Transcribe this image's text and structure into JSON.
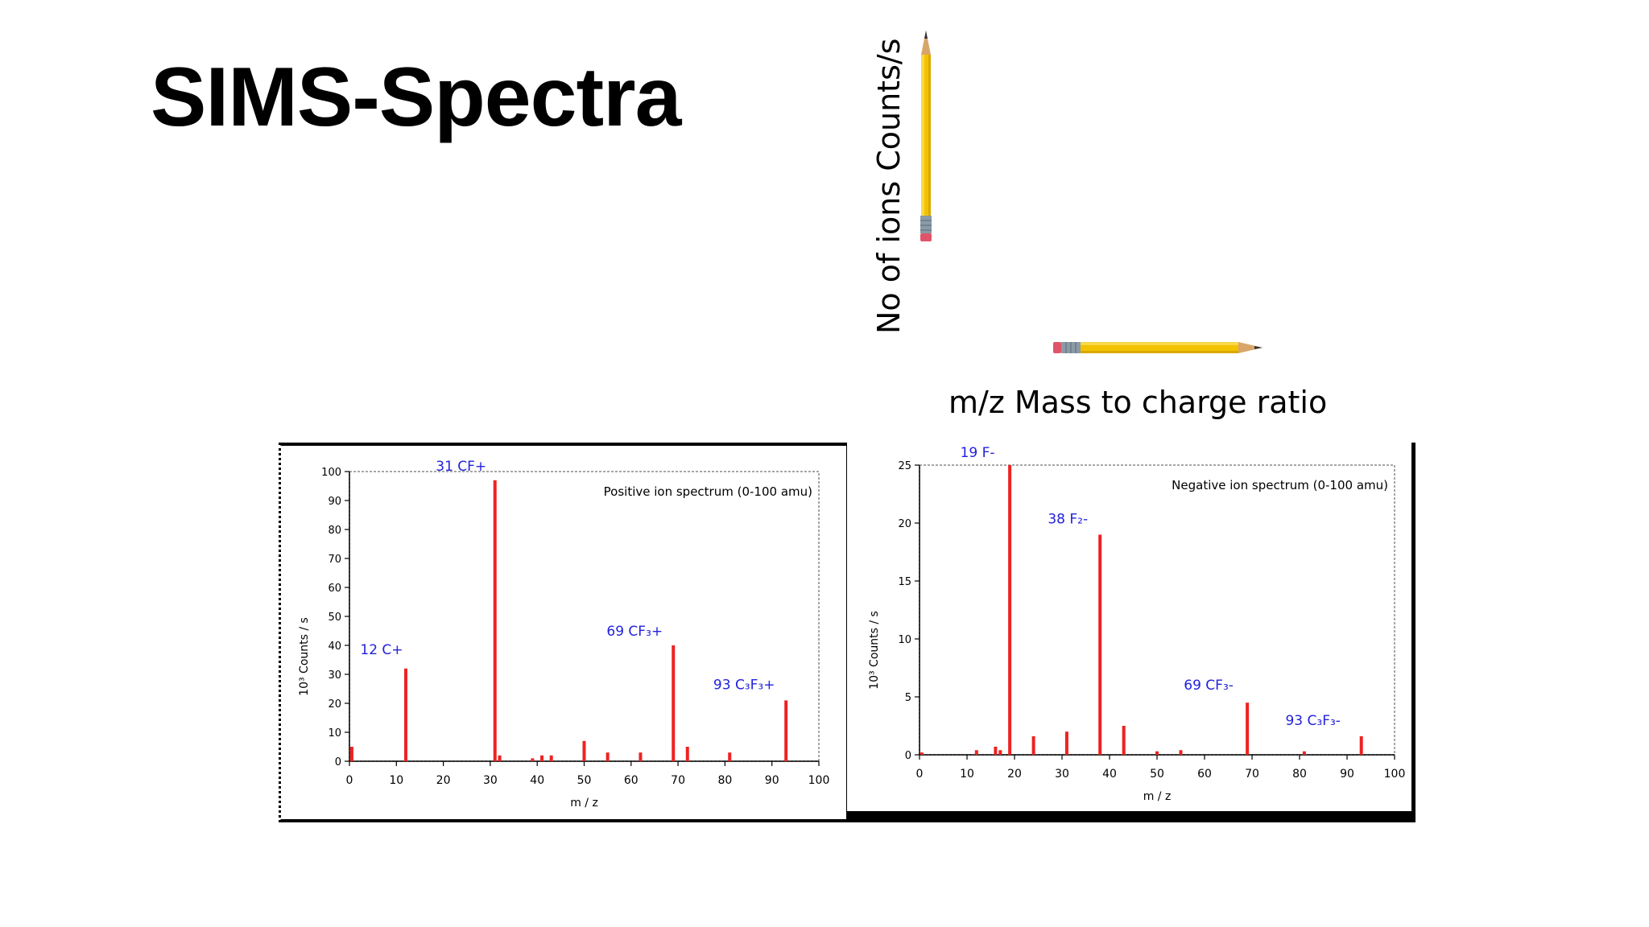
{
  "slide": {
    "title": "SIMS-Spectra",
    "y_axis_caption": "No of ions  Counts/s",
    "x_axis_caption": "m/z  Mass to charge ratio"
  },
  "colors": {
    "peak": "#ee2222",
    "label": "#2222dd",
    "axis": "#000000",
    "grid": "#888888"
  },
  "icons": [
    "pencil-vertical-icon",
    "pencil-horizontal-icon"
  ],
  "chart_data": [
    {
      "type": "bar",
      "title": "Positive ion spectrum (0-100 amu)",
      "xlabel": "m / z",
      "ylabel": "10³ Counts / s",
      "xlim": [
        0,
        100
      ],
      "ylim": [
        0,
        100
      ],
      "xticks": [
        0,
        10,
        20,
        30,
        40,
        50,
        60,
        70,
        80,
        90,
        100
      ],
      "yticks": [
        0,
        10,
        20,
        30,
        40,
        50,
        60,
        70,
        80,
        90,
        100
      ],
      "peaks": [
        {
          "x": 0.5,
          "y": 5
        },
        {
          "x": 12,
          "y": 32
        },
        {
          "x": 31,
          "y": 97
        },
        {
          "x": 32,
          "y": 2
        },
        {
          "x": 39,
          "y": 1
        },
        {
          "x": 41,
          "y": 2
        },
        {
          "x": 43,
          "y": 2
        },
        {
          "x": 50,
          "y": 7
        },
        {
          "x": 55,
          "y": 3
        },
        {
          "x": 62,
          "y": 3
        },
        {
          "x": 69,
          "y": 40
        },
        {
          "x": 72,
          "y": 5
        },
        {
          "x": 81,
          "y": 3
        },
        {
          "x": 93,
          "y": 21
        }
      ],
      "annotations": [
        {
          "text": "12 C+",
          "x": 12,
          "y": 32
        },
        {
          "text": "31 CF+",
          "x": 31,
          "y": 97
        },
        {
          "text": "69 CF₃+",
          "x": 69,
          "y": 40
        },
        {
          "text": "93 C₃F₃+",
          "x": 93,
          "y": 21
        }
      ]
    },
    {
      "type": "bar",
      "title": "Negative ion spectrum (0-100 amu)",
      "xlabel": "m / z",
      "ylabel": "10³ Counts / s",
      "xlim": [
        0,
        100
      ],
      "ylim": [
        0,
        25
      ],
      "xticks": [
        0,
        10,
        20,
        30,
        40,
        50,
        60,
        70,
        80,
        90,
        100
      ],
      "yticks": [
        0,
        5,
        10,
        15,
        20,
        25
      ],
      "peaks": [
        {
          "x": 0.5,
          "y": 0.2
        },
        {
          "x": 12,
          "y": 0.4
        },
        {
          "x": 16,
          "y": 0.7
        },
        {
          "x": 17,
          "y": 0.4
        },
        {
          "x": 19,
          "y": 25
        },
        {
          "x": 24,
          "y": 1.6
        },
        {
          "x": 31,
          "y": 2
        },
        {
          "x": 38,
          "y": 19
        },
        {
          "x": 43,
          "y": 2.5
        },
        {
          "x": 50,
          "y": 0.3
        },
        {
          "x": 55,
          "y": 0.4
        },
        {
          "x": 69,
          "y": 4.5
        },
        {
          "x": 81,
          "y": 0.3
        },
        {
          "x": 93,
          "y": 1.6
        }
      ],
      "annotations": [
        {
          "text": "19 F-",
          "x": 19,
          "y": 25
        },
        {
          "text": "38 F₂-",
          "x": 38,
          "y": 19
        },
        {
          "text": "69 CF₃-",
          "x": 69,
          "y": 4.5
        },
        {
          "text": "93 C₃F₃-",
          "x": 93,
          "y": 1.6
        }
      ]
    }
  ]
}
